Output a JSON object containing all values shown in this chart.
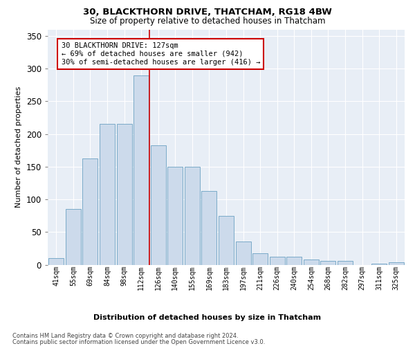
{
  "title": "30, BLACKTHORN DRIVE, THATCHAM, RG18 4BW",
  "subtitle": "Size of property relative to detached houses in Thatcham",
  "xlabel_bottom": "Distribution of detached houses by size in Thatcham",
  "ylabel": "Number of detached properties",
  "bar_labels": [
    "41sqm",
    "55sqm",
    "69sqm",
    "84sqm",
    "98sqm",
    "112sqm",
    "126sqm",
    "140sqm",
    "155sqm",
    "169sqm",
    "183sqm",
    "197sqm",
    "211sqm",
    "226sqm",
    "240sqm",
    "254sqm",
    "268sqm",
    "282sqm",
    "297sqm",
    "311sqm",
    "325sqm"
  ],
  "bar_values": [
    10,
    85,
    163,
    215,
    215,
    290,
    183,
    150,
    150,
    113,
    75,
    35,
    17,
    12,
    12,
    8,
    6,
    6,
    0,
    2,
    4
  ],
  "bar_color": "#ccdaeb",
  "bar_edge_color": "#7aaac8",
  "background_color": "#e8eef6",
  "grid_color": "#ffffff",
  "red_line_x": 5.5,
  "annotation_text": "30 BLACKTHORN DRIVE: 127sqm\n← 69% of detached houses are smaller (942)\n30% of semi-detached houses are larger (416) →",
  "annotation_box_color": "#ffffff",
  "annotation_box_edge_color": "#cc0000",
  "footer1": "Contains HM Land Registry data © Crown copyright and database right 2024.",
  "footer2": "Contains public sector information licensed under the Open Government Licence v3.0.",
  "ylim": [
    0,
    360
  ],
  "yticks": [
    0,
    50,
    100,
    150,
    200,
    250,
    300,
    350
  ]
}
